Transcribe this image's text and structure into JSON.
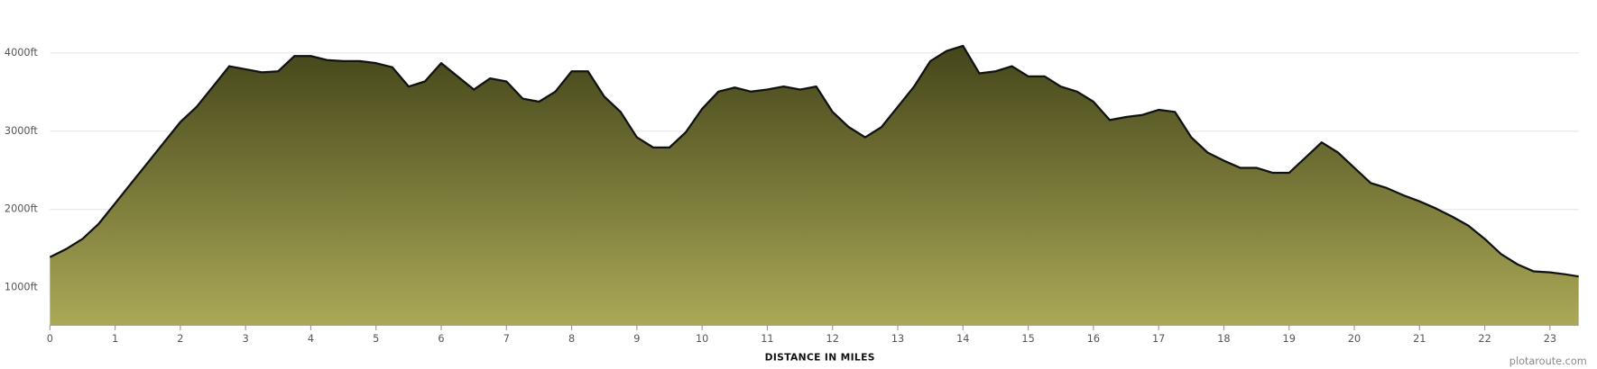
{
  "chart_data": {
    "type": "area",
    "x_label": "DISTANCE IN MILES",
    "credit": "plotaroute.com",
    "x": [
      0,
      0.25,
      0.5,
      0.75,
      1,
      1.25,
      1.5,
      1.75,
      2,
      2.25,
      2.5,
      2.75,
      3,
      3.25,
      3.5,
      3.75,
      4,
      4.25,
      4.5,
      4.75,
      5,
      5.25,
      5.5,
      5.75,
      6,
      6.25,
      6.5,
      6.75,
      7,
      7.25,
      7.5,
      7.75,
      8,
      8.25,
      8.5,
      8.75,
      9,
      9.25,
      9.5,
      9.75,
      10,
      10.25,
      10.5,
      10.75,
      11,
      11.25,
      11.5,
      11.75,
      12,
      12.25,
      12.5,
      12.75,
      13,
      13.25,
      13.5,
      13.75,
      14,
      14.25,
      14.5,
      14.75,
      15,
      15.25,
      15.5,
      15.75,
      16,
      16.25,
      16.5,
      16.75,
      17,
      17.25,
      17.5,
      17.75,
      18,
      18.25,
      18.5,
      18.75,
      19,
      19.25,
      19.5,
      19.75,
      20,
      20.25,
      20.5,
      20.75,
      21,
      21.25,
      21.5,
      21.75,
      22,
      22.25,
      22.5,
      22.75,
      23,
      23.25,
      23.44
    ],
    "values": [
      1390,
      1494,
      1623,
      1818,
      2078,
      2338,
      2597,
      2857,
      3117,
      3312,
      3571,
      3831,
      3792,
      3753,
      3766,
      3961,
      3961,
      3909,
      3896,
      3896,
      3870,
      3818,
      3571,
      3636,
      3870,
      3701,
      3532,
      3675,
      3636,
      3416,
      3377,
      3506,
      3766,
      3766,
      3442,
      3247,
      2922,
      2792,
      2792,
      2987,
      3286,
      3506,
      3558,
      3506,
      3532,
      3571,
      3532,
      3571,
      3247,
      3052,
      2922,
      3052,
      3312,
      3571,
      3896,
      4026,
      4091,
      3740,
      3766,
      3831,
      3701,
      3701,
      3571,
      3506,
      3377,
      3143,
      3182,
      3208,
      3273,
      3247,
      2922,
      2727,
      2623,
      2532,
      2532,
      2468,
      2468,
      2662,
      2857,
      2727,
      2532,
      2338,
      2273,
      2182,
      2104,
      2013,
      1909,
      1792,
      1623,
      1429,
      1299,
      1208,
      1195,
      1169,
      1143
    ],
    "xlim": [
      0,
      23.44
    ],
    "ylim": [
      520,
      4420
    ],
    "xticks": [
      0,
      1,
      2,
      3,
      4,
      5,
      6,
      7,
      8,
      9,
      10,
      11,
      12,
      13,
      14,
      15,
      16,
      17,
      18,
      19,
      20,
      21,
      22,
      23
    ],
    "yticks": [
      {
        "value": 1000,
        "label": "1000ft"
      },
      {
        "value": 2000,
        "label": "2000ft"
      },
      {
        "value": 3000,
        "label": "3000ft"
      },
      {
        "value": 4000,
        "label": "4000ft"
      }
    ],
    "grid": true
  }
}
